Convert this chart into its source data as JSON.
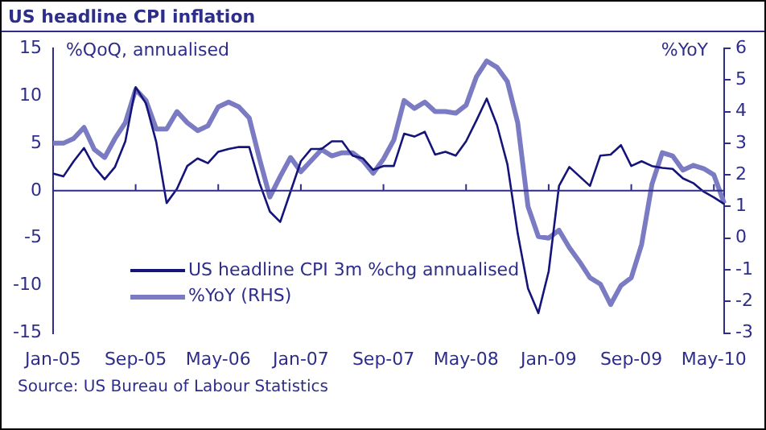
{
  "chart_data": {
    "type": "line",
    "title": "US headline CPI inflation",
    "ylabel": "%QoQ, annualised",
    "y2label": "%YoY",
    "categories": [
      "Jan-05",
      null,
      null,
      null,
      null,
      null,
      null,
      null,
      "Sep-05",
      null,
      null,
      null,
      null,
      null,
      null,
      null,
      "May-06",
      null,
      null,
      null,
      null,
      null,
      null,
      null,
      "Jan-07",
      null,
      null,
      null,
      null,
      null,
      null,
      null,
      "Sep-07",
      null,
      null,
      null,
      null,
      null,
      null,
      null,
      "May-08",
      null,
      null,
      null,
      null,
      null,
      null,
      null,
      "Jan-09",
      null,
      null,
      null,
      null,
      null,
      null,
      null,
      "Sep-09",
      null,
      null,
      null,
      null,
      null,
      null,
      null,
      "May-10",
      null
    ],
    "series": [
      {
        "name": "US headline CPI 3m %chg annualised",
        "color": "#14147a",
        "values": [
          1.8,
          1.5,
          3.1,
          4.5,
          2.5,
          1.2,
          2.5,
          5.2,
          10.9,
          9.2,
          5.1,
          -1.3,
          0.2,
          2.6,
          3.4,
          2.9,
          4.1,
          4.4,
          4.6,
          4.6,
          0.8,
          -2.2,
          -3.3,
          -0.1,
          3.1,
          4.4,
          4.4,
          5.2,
          5.2,
          3.7,
          3.4,
          2.2,
          2.6,
          2.6,
          6.0,
          5.7,
          6.2,
          3.8,
          4.1,
          3.7,
          5.2,
          7.4,
          9.7,
          6.9,
          2.8,
          -4.5,
          -10.3,
          -12.9,
          -8.5,
          0.5,
          2.5,
          1.5,
          0.5,
          3.7,
          3.8,
          4.8,
          2.6,
          3.1,
          2.6,
          2.4,
          2.3,
          1.3,
          0.8,
          -0.1,
          -0.7,
          -1.4
        ]
      },
      {
        "name": "%YoY (RHS)",
        "color": "#7b7bc4",
        "axis": "y2",
        "values": [
          3.0,
          3.0,
          3.15,
          3.5,
          2.8,
          2.55,
          3.15,
          3.65,
          4.7,
          4.35,
          3.45,
          3.45,
          4.0,
          3.65,
          3.4,
          3.55,
          4.15,
          4.3,
          4.15,
          3.8,
          2.5,
          1.3,
          1.95,
          2.55,
          2.1,
          2.45,
          2.8,
          2.6,
          2.7,
          2.7,
          2.45,
          2.05,
          2.5,
          3.1,
          4.35,
          4.1,
          4.3,
          4.0,
          4.0,
          3.95,
          4.2,
          5.1,
          5.6,
          5.4,
          4.95,
          3.65,
          1.0,
          0.05,
          0.0,
          0.25,
          -0.3,
          -0.75,
          -1.25,
          -1.45,
          -2.1,
          -1.5,
          -1.25,
          -0.2,
          1.7,
          2.7,
          2.6,
          2.15,
          2.3,
          2.2,
          2.0,
          1.1
        ]
      }
    ],
    "ylim": [
      -15,
      15
    ],
    "yticks": [
      -15,
      -10,
      -5,
      0,
      5,
      10,
      15
    ],
    "y2lim": [
      -3,
      6
    ],
    "y2ticks": [
      -3,
      -2,
      -1,
      0,
      1,
      2,
      3,
      4,
      5,
      6
    ],
    "ref_lines": [
      {
        "axis": "y",
        "value": 0,
        "color": "#2e2e8a"
      }
    ],
    "legend": "bottom left",
    "marker": "none",
    "line_style": "solid",
    "annotations": [
      "Source: US Bureau of Labour Statistics"
    ]
  }
}
